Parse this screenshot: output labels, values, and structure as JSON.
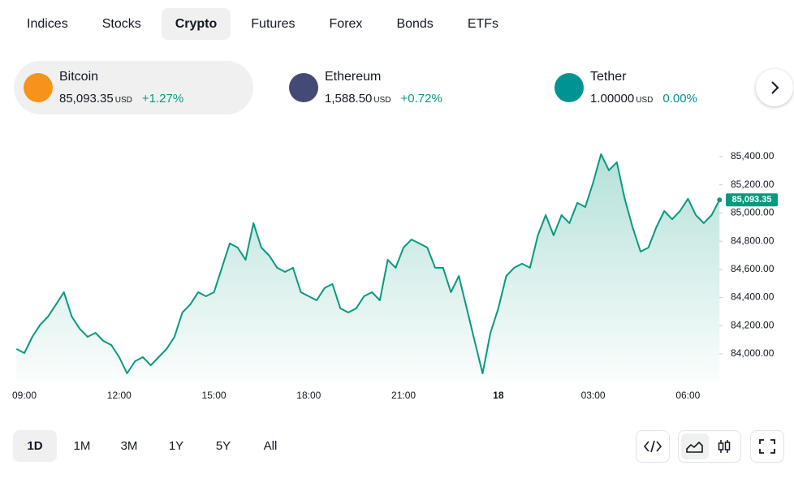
{
  "tabs": {
    "items": [
      "Indices",
      "Stocks",
      "Crypto",
      "Futures",
      "Forex",
      "Bonds",
      "ETFs"
    ],
    "active": "Crypto"
  },
  "tickers": [
    {
      "name": "Bitcoin",
      "price": "85,093.35",
      "unit": "USD",
      "change": "+1.27%",
      "icon": "#f7931a",
      "change_color": "#089981"
    },
    {
      "name": "Ethereum",
      "price": "1,588.50",
      "unit": "USD",
      "change": "+0.72%",
      "icon": "#454a75",
      "change_color": "#089981"
    },
    {
      "name": "Tether",
      "price": "1.00000",
      "unit": "USD",
      "change": "0.00%",
      "icon": "#009393",
      "change_color": "#009393"
    }
  ],
  "chart_data": {
    "type": "area",
    "color": "#089981",
    "categories": [
      "08:45",
      "09:00",
      "09:15",
      "09:30",
      "09:45",
      "10:00",
      "10:15",
      "10:30",
      "10:45",
      "11:00",
      "11:15",
      "11:30",
      "11:45",
      "12:00",
      "12:15",
      "12:30",
      "12:45",
      "13:00",
      "13:15",
      "13:30",
      "13:45",
      "14:00",
      "14:15",
      "14:30",
      "14:45",
      "15:00",
      "15:15",
      "15:30",
      "15:45",
      "16:00",
      "16:15",
      "16:30",
      "16:45",
      "17:00",
      "17:15",
      "17:30",
      "17:45",
      "18:00",
      "18:15",
      "18:30",
      "18:45",
      "19:00",
      "19:15",
      "19:30",
      "19:45",
      "20:00",
      "20:15",
      "20:30",
      "20:45",
      "21:00",
      "21:15",
      "21:30",
      "21:45",
      "22:00",
      "22:15",
      "22:30",
      "22:45",
      "23:00",
      "23:15",
      "23:30",
      "23:45",
      "00:00",
      "00:15",
      "00:30",
      "00:45",
      "01:00",
      "01:15",
      "01:30",
      "01:45",
      "02:00",
      "02:15",
      "02:30",
      "02:45",
      "03:00",
      "03:15",
      "03:30",
      "03:45",
      "04:00",
      "04:15",
      "04:30",
      "04:45",
      "05:00",
      "05:15",
      "05:30",
      "05:45",
      "06:00",
      "06:15",
      "06:30",
      "06:45",
      "07:00"
    ],
    "values": [
      84035,
      84006,
      84121,
      84207,
      84265,
      84351,
      84438,
      84265,
      84179,
      84121,
      84150,
      84092,
      84063,
      83977,
      83862,
      83948,
      83977,
      83919,
      83977,
      84035,
      84121,
      84294,
      84351,
      84438,
      84409,
      84438,
      84611,
      84784,
      84755,
      84668,
      84928,
      84755,
      84697,
      84611,
      84582,
      84611,
      84438,
      84409,
      84380,
      84467,
      84496,
      84323,
      84294,
      84323,
      84409,
      84438,
      84380,
      84668,
      84611,
      84755,
      84812,
      84784,
      84755,
      84611,
      84611,
      84438,
      84553,
      84323,
      84092,
      83862,
      84150,
      84323,
      84553,
      84611,
      84640,
      84611,
      84841,
      84985,
      84841,
      84985,
      84928,
      85072,
      85043,
      85216,
      85417,
      85303,
      85360,
      85101,
      84899,
      84726,
      84755,
      84899,
      85014,
      84956,
      85014,
      85101,
      84985,
      84928,
      84985,
      85093.35
    ],
    "last_label": "85,093.35",
    "ylim": [
      83800,
      85500
    ],
    "yticks": [
      {
        "value": 84000,
        "label": "84,000.00"
      },
      {
        "value": 84200,
        "label": "84,200.00"
      },
      {
        "value": 84400,
        "label": "84,400.00"
      },
      {
        "value": 84600,
        "label": "84,600.00"
      },
      {
        "value": 84800,
        "label": "84,800.00"
      },
      {
        "value": 85000,
        "label": "85,000.00"
      },
      {
        "value": 85200,
        "label": "85,200.00"
      },
      {
        "value": 85400,
        "label": "85,400.00"
      }
    ],
    "xticks": [
      "09:00",
      "12:00",
      "15:00",
      "18:00",
      "21:00",
      {
        "value": "00:00",
        "label": "18"
      },
      "03:00",
      "06:00"
    ]
  },
  "ranges": {
    "items": [
      "1D",
      "1M",
      "3M",
      "1Y",
      "5Y",
      "All"
    ],
    "active": "1D"
  }
}
